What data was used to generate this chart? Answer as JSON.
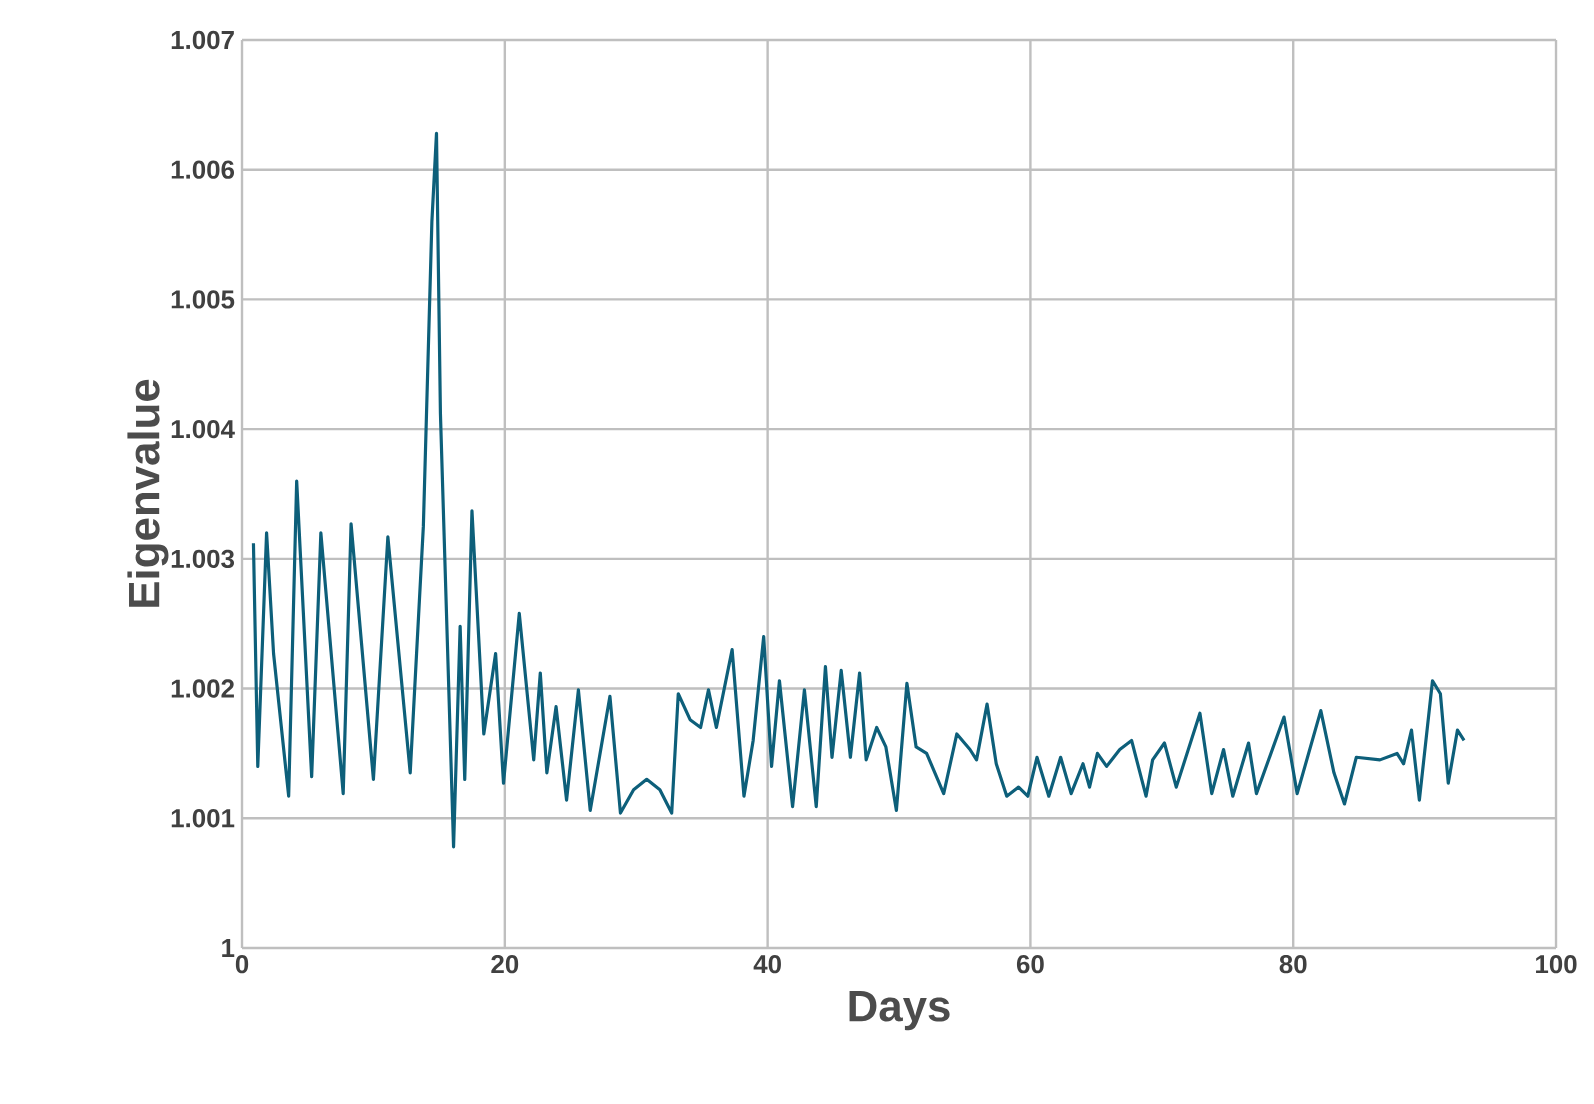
{
  "chart_data": {
    "type": "line",
    "xlabel": "Days",
    "ylabel": "Eigenvalue",
    "xlim": [
      0,
      100
    ],
    "ylim": [
      1,
      1.007
    ],
    "xticks": [
      0,
      20,
      40,
      60,
      80,
      100
    ],
    "yticks": [
      1,
      1.001,
      1.002,
      1.003,
      1.004,
      1.005,
      1.006,
      1.007
    ],
    "grid": true,
    "marker": "none",
    "line_style": "solid",
    "series": [
      {
        "color": "#0d5f7a",
        "x": [
          0.87,
          1.2,
          1.87,
          2.4,
          3.55,
          4.16,
          5.3,
          6.0,
          7.7,
          8.3,
          10.0,
          11.1,
          12.8,
          13.8,
          14.45,
          14.8,
          15.1,
          16.1,
          16.6,
          16.95,
          17.5,
          18.4,
          19.3,
          19.9,
          21.1,
          22.2,
          22.7,
          23.2,
          23.9,
          24.7,
          25.6,
          26.5,
          28.0,
          28.8,
          29.8,
          30.8,
          31.8,
          32.7,
          33.2,
          34.1,
          34.9,
          35.5,
          36.1,
          37.3,
          38.2,
          38.9,
          39.7,
          40.3,
          40.9,
          41.9,
          42.8,
          43.7,
          44.4,
          44.9,
          45.6,
          46.3,
          47.0,
          47.5,
          48.3,
          49.0,
          49.8,
          50.6,
          51.3,
          52.1,
          53.4,
          54.4,
          55.4,
          55.9,
          56.7,
          57.4,
          58.2,
          59.1,
          59.8,
          60.5,
          61.4,
          62.3,
          63.1,
          64.0,
          64.5,
          65.1,
          65.8,
          66.8,
          67.7,
          68.8,
          69.3,
          70.2,
          71.1,
          72.9,
          73.8,
          74.7,
          75.4,
          76.6,
          77.2,
          79.3,
          80.3,
          82.1,
          83.1,
          83.9,
          84.8,
          86.6,
          87.9,
          88.4,
          89.0,
          89.6,
          90.6,
          91.2,
          91.8,
          92.5,
          93.0
        ],
        "values": [
          1.00312,
          1.0014,
          1.0032,
          1.00227,
          1.00117,
          1.0036,
          1.00132,
          1.0032,
          1.00119,
          1.00327,
          1.0013,
          1.00317,
          1.00135,
          1.00325,
          1.0056,
          1.00628,
          1.00412,
          1.00078,
          1.00248,
          1.0013,
          1.00337,
          1.00165,
          1.00227,
          1.00127,
          1.00258,
          1.00145,
          1.00212,
          1.00135,
          1.00186,
          1.00114,
          1.00199,
          1.00106,
          1.00194,
          1.00104,
          1.00122,
          1.0013,
          1.00122,
          1.00104,
          1.00196,
          1.00176,
          1.0017,
          1.00199,
          1.0017,
          1.0023,
          1.00117,
          1.0016,
          1.0024,
          1.0014,
          1.00206,
          1.00109,
          1.00199,
          1.00109,
          1.00217,
          1.00147,
          1.00214,
          1.00147,
          1.00212,
          1.00145,
          1.0017,
          1.00155,
          1.00106,
          1.00204,
          1.00155,
          1.0015,
          1.00119,
          1.00165,
          1.00153,
          1.00145,
          1.00188,
          1.00142,
          1.00117,
          1.00124,
          1.00117,
          1.00147,
          1.00117,
          1.00147,
          1.00119,
          1.00142,
          1.00124,
          1.0015,
          1.0014,
          1.00153,
          1.0016,
          1.00117,
          1.00145,
          1.00158,
          1.00124,
          1.00181,
          1.00119,
          1.00153,
          1.00117,
          1.00158,
          1.00119,
          1.00178,
          1.00119,
          1.00183,
          1.00135,
          1.00111,
          1.00147,
          1.00145,
          1.0015,
          1.00142,
          1.00168,
          1.00114,
          1.00206,
          1.00196,
          1.00127,
          1.00168,
          1.0016
        ]
      }
    ]
  }
}
